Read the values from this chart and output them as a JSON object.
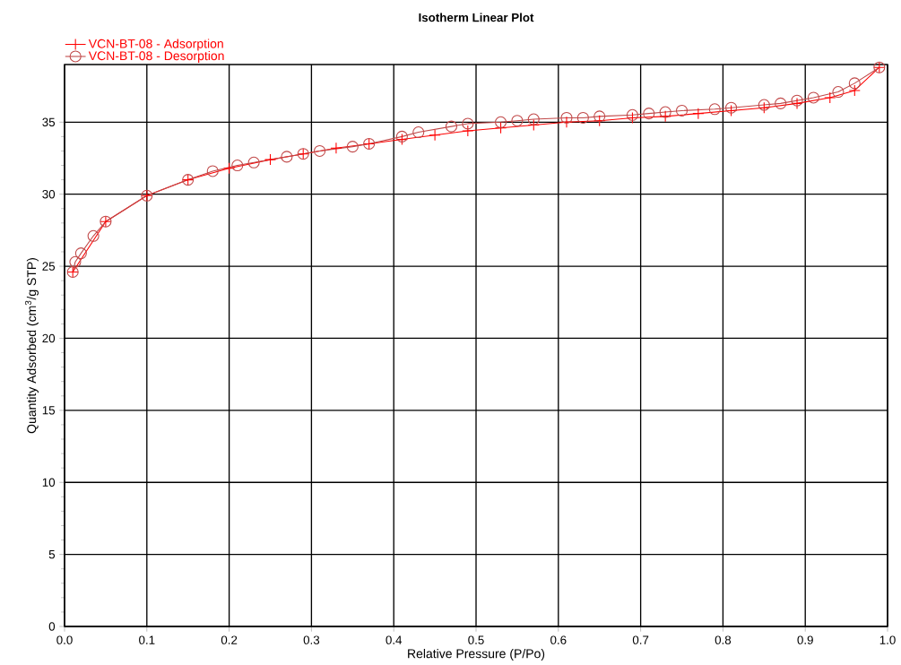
{
  "chart_data": {
    "type": "line",
    "title": "Isotherm Linear Plot",
    "xlabel": "Relative Pressure (P/Po)",
    "ylabel": "Quantity Adsorbed (cm$^{3}$/g STP)",
    "xlim": [
      0,
      1
    ],
    "ylim": [
      0,
      39
    ],
    "xticks": [
      {
        "value": 0,
        "label": "0.0"
      },
      0.1,
      0.2,
      0.3,
      0.4,
      0.5,
      0.6,
      0.7,
      0.8,
      0.9,
      {
        "value": 1,
        "label": "1.0"
      }
    ],
    "yticks": [
      0,
      5,
      10,
      15,
      20,
      25,
      30,
      35
    ],
    "grid": true,
    "legend": "top left",
    "line_style": "solid",
    "series": [
      {
        "name": "VCN-BT-08 - Adsorption",
        "color": "#ff0000",
        "marker": "cross",
        "x": [
          0.01,
          0.05,
          0.1,
          0.15,
          0.2,
          0.25,
          0.29,
          0.33,
          0.37,
          0.41,
          0.45,
          0.49,
          0.53,
          0.57,
          0.61,
          0.65,
          0.69,
          0.73,
          0.77,
          0.81,
          0.85,
          0.89,
          0.93,
          0.96,
          0.99
        ],
        "values": [
          24.6,
          28.1,
          29.9,
          31.0,
          31.8,
          32.4,
          32.8,
          33.2,
          33.5,
          33.8,
          34.1,
          34.4,
          34.6,
          34.8,
          35.0,
          35.1,
          35.3,
          35.4,
          35.6,
          35.8,
          36.0,
          36.3,
          36.7,
          37.2,
          38.8
        ]
      },
      {
        "name": "VCN-BT-08 - Desorption",
        "color": "#c04848",
        "marker": "circle",
        "x": [
          0.99,
          0.96,
          0.94,
          0.91,
          0.89,
          0.87,
          0.85,
          0.81,
          0.79,
          0.75,
          0.73,
          0.71,
          0.69,
          0.65,
          0.63,
          0.61,
          0.57,
          0.55,
          0.53,
          0.49,
          0.47,
          0.43,
          0.41,
          0.37,
          0.35,
          0.31,
          0.29,
          0.27,
          0.23,
          0.21,
          0.18,
          0.15,
          0.1,
          0.05,
          0.035,
          0.02,
          0.013,
          0.01
        ],
        "values": [
          38.8,
          37.7,
          37.1,
          36.7,
          36.5,
          36.3,
          36.2,
          36.0,
          35.9,
          35.8,
          35.7,
          35.6,
          35.5,
          35.4,
          35.3,
          35.3,
          35.2,
          35.1,
          35.0,
          34.9,
          34.7,
          34.3,
          34.0,
          33.5,
          33.3,
          33.0,
          32.8,
          32.6,
          32.2,
          32.0,
          31.6,
          31.0,
          29.9,
          28.1,
          27.1,
          25.9,
          25.3,
          24.6
        ]
      }
    ]
  }
}
